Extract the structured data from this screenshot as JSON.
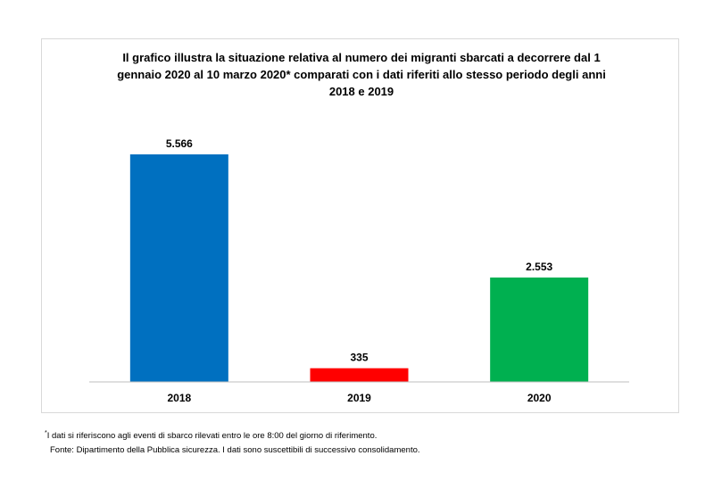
{
  "chart_data": {
    "type": "bar",
    "title_lines": [
      "Il grafico illustra la situazione relativa al numero dei migranti sbarcati a decorrere dal 1",
      "gennaio 2020 al 10 marzo 2020* comparati con i dati riferiti allo stesso periodo degli anni",
      "2018  e 2019"
    ],
    "categories": [
      "2018",
      "2019",
      "2020"
    ],
    "values": [
      5566,
      335,
      2553
    ],
    "value_labels": [
      "5.566",
      "335",
      "2.553"
    ],
    "colors": [
      "#0070c0",
      "#ff0000",
      "#00b050"
    ],
    "xlabel": "",
    "ylabel": "",
    "ylim": [
      0,
      5566
    ],
    "grid": false,
    "legend": "none"
  },
  "footnote": {
    "marker": "*",
    "note": "I dati si riferiscono agli eventi di sbarco rilevati entro le ore 8:00 del giorno di riferimento.",
    "source": "Fonte: Dipartimento della Pubblica sicurezza. I dati sono suscettibili di successivo consolidamento."
  }
}
